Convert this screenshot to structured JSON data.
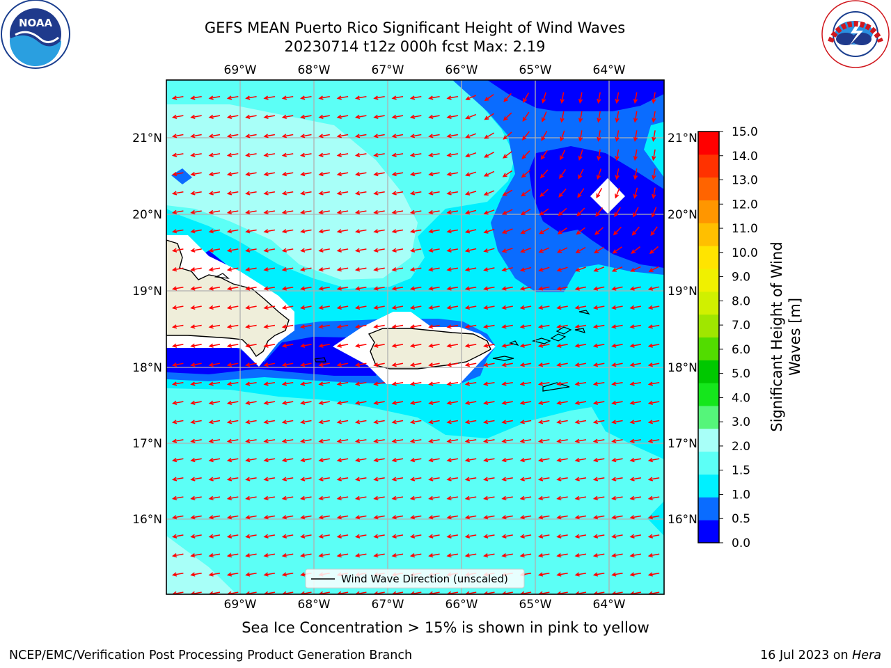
{
  "title_line1": "GEFS MEAN Puerto Rico Significant Height of Wind Waves",
  "title_line2": "20230714 t12z 000h fcst   Max: 2.19",
  "caption": "Sea Ice Concentration > 15% is shown in pink to yellow",
  "footer_left": "NCEP/EMC/Verification Post Processing Product Generation Branch",
  "footer_right_prefix": "16 Jul 2023 on ",
  "footer_right_host": "Hera",
  "logos": {
    "left": {
      "name": "noaa-logo",
      "text": "NOAA",
      "ring_text": "NATIONAL OCEANIC AND ATMOSPHERIC ADMINISTRATION · U.S. DEPARTMENT OF COMMERCE"
    },
    "right": {
      "name": "nws-logo",
      "ring_text": "NATIONAL WEATHER SERVICE"
    }
  },
  "map": {
    "lon_labels": [
      "69°W",
      "68°W",
      "67°W",
      "66°W",
      "65°W",
      "64°W"
    ],
    "lat_labels": [
      "21°N",
      "20°N",
      "19°N",
      "18°N",
      "17°N",
      "16°N"
    ],
    "legend_label": "Wind Wave Direction (unscaled)",
    "arrow_color": "#ff0000"
  },
  "colorbar": {
    "label_line1": "Significant Height of Wind",
    "label_line2": "Waves [m]",
    "ticks": [
      "0.0",
      "0.5",
      "1.0",
      "1.5",
      "2.0",
      "3.0",
      "4.0",
      "5.0",
      "6.0",
      "7.0",
      "8.0",
      "9.0",
      "10.0",
      "11.0",
      "12.0",
      "13.0",
      "14.0",
      "15.0"
    ],
    "colors": [
      "#0000ff",
      "#0a6cff",
      "#00f0ff",
      "#5cfff6",
      "#a8fff8",
      "#55f57a",
      "#15e61c",
      "#00c800",
      "#52dc00",
      "#a0e600",
      "#d0f000",
      "#f0f000",
      "#ffe400",
      "#ffbf00",
      "#ff9600",
      "#ff6400",
      "#ff3200",
      "#ff0000"
    ]
  }
}
